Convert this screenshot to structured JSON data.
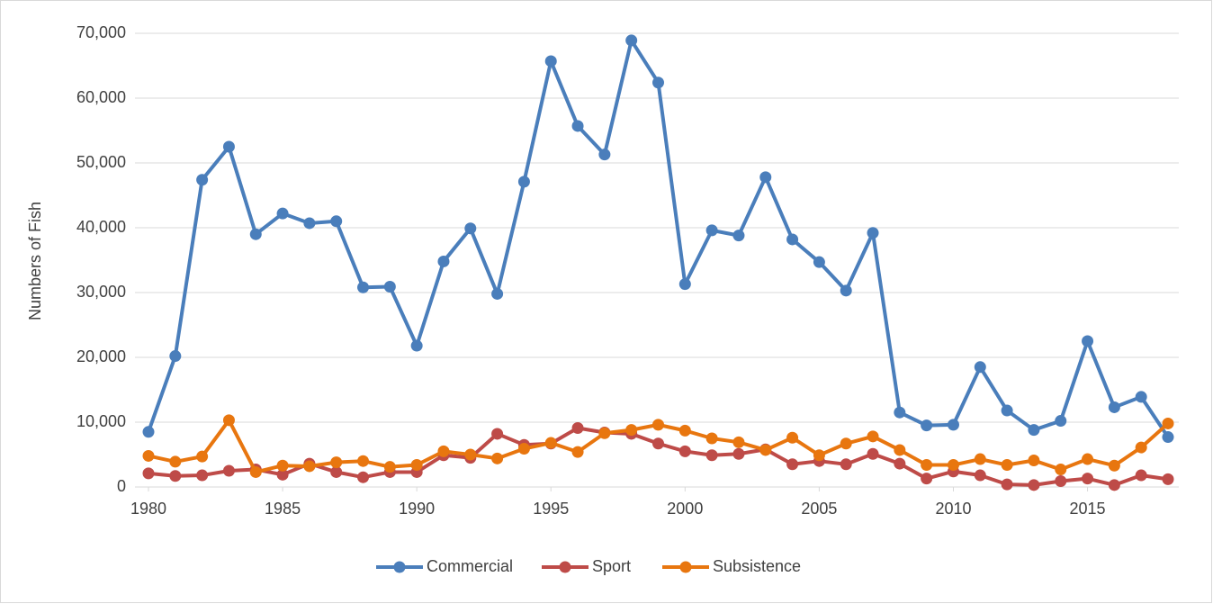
{
  "chart_data": {
    "type": "line",
    "y_label": "Numbers of Fish",
    "x": [
      1980,
      1981,
      1982,
      1983,
      1984,
      1985,
      1986,
      1987,
      1988,
      1989,
      1990,
      1991,
      1992,
      1993,
      1994,
      1995,
      1996,
      1997,
      1998,
      1999,
      2000,
      2001,
      2002,
      2003,
      2004,
      2005,
      2006,
      2007,
      2008,
      2009,
      2010,
      2011,
      2012,
      2013,
      2014,
      2015,
      2016,
      2017,
      2018
    ],
    "series": [
      {
        "name": "Commercial",
        "color": "#4a7ebb",
        "values": [
          8500,
          20200,
          47400,
          52500,
          39000,
          42200,
          40700,
          41000,
          30800,
          30900,
          21800,
          34800,
          39900,
          29800,
          47100,
          65700,
          55700,
          51300,
          68900,
          62400,
          31300,
          39600,
          38800,
          47800,
          38200,
          34700,
          30300,
          39200,
          11500,
          9500,
          9600,
          18500,
          11800,
          8800,
          10200,
          22500,
          12300,
          13900,
          7700
        ]
      },
      {
        "name": "Sport",
        "color": "#be4b48",
        "values": [
          2100,
          1700,
          1800,
          2500,
          2700,
          1900,
          3600,
          2300,
          1500,
          2300,
          2300,
          4900,
          4500,
          8200,
          6500,
          6700,
          9100,
          8400,
          8200,
          6700,
          5500,
          4900,
          5100,
          5800,
          3500,
          4000,
          3500,
          5100,
          3600,
          1300,
          2400,
          1800,
          400,
          300,
          900,
          1300,
          300,
          1800,
          1200
        ]
      },
      {
        "name": "Subsistence",
        "color": "#e8760f",
        "values": [
          4800,
          3900,
          4700,
          10300,
          2300,
          3300,
          3200,
          3800,
          4000,
          3100,
          3400,
          5500,
          5000,
          4400,
          5900,
          6800,
          5400,
          8300,
          8800,
          9600,
          8700,
          7500,
          6900,
          5700,
          7600,
          4900,
          6700,
          7800,
          5700,
          3400,
          3400,
          4300,
          3400,
          4100,
          2700,
          4300,
          3300,
          6100,
          9800
        ]
      }
    ],
    "xlim": [
      1980,
      2018
    ],
    "xticks": [
      1980,
      1985,
      1990,
      1995,
      2000,
      2005,
      2010,
      2015
    ],
    "ylim": [
      0,
      70000
    ],
    "yticks": [
      0,
      {
        "value": 10000,
        "label": "10,000"
      },
      {
        "value": 20000,
        "label": "20,000"
      },
      {
        "value": 30000,
        "label": "30,000"
      },
      {
        "value": 40000,
        "label": "40,000"
      },
      {
        "value": 50000,
        "label": "50,000"
      },
      {
        "value": 60000,
        "label": "60,000"
      },
      {
        "value": 70000,
        "label": "70,000"
      }
    ],
    "grid": true,
    "legend": "bottom"
  }
}
